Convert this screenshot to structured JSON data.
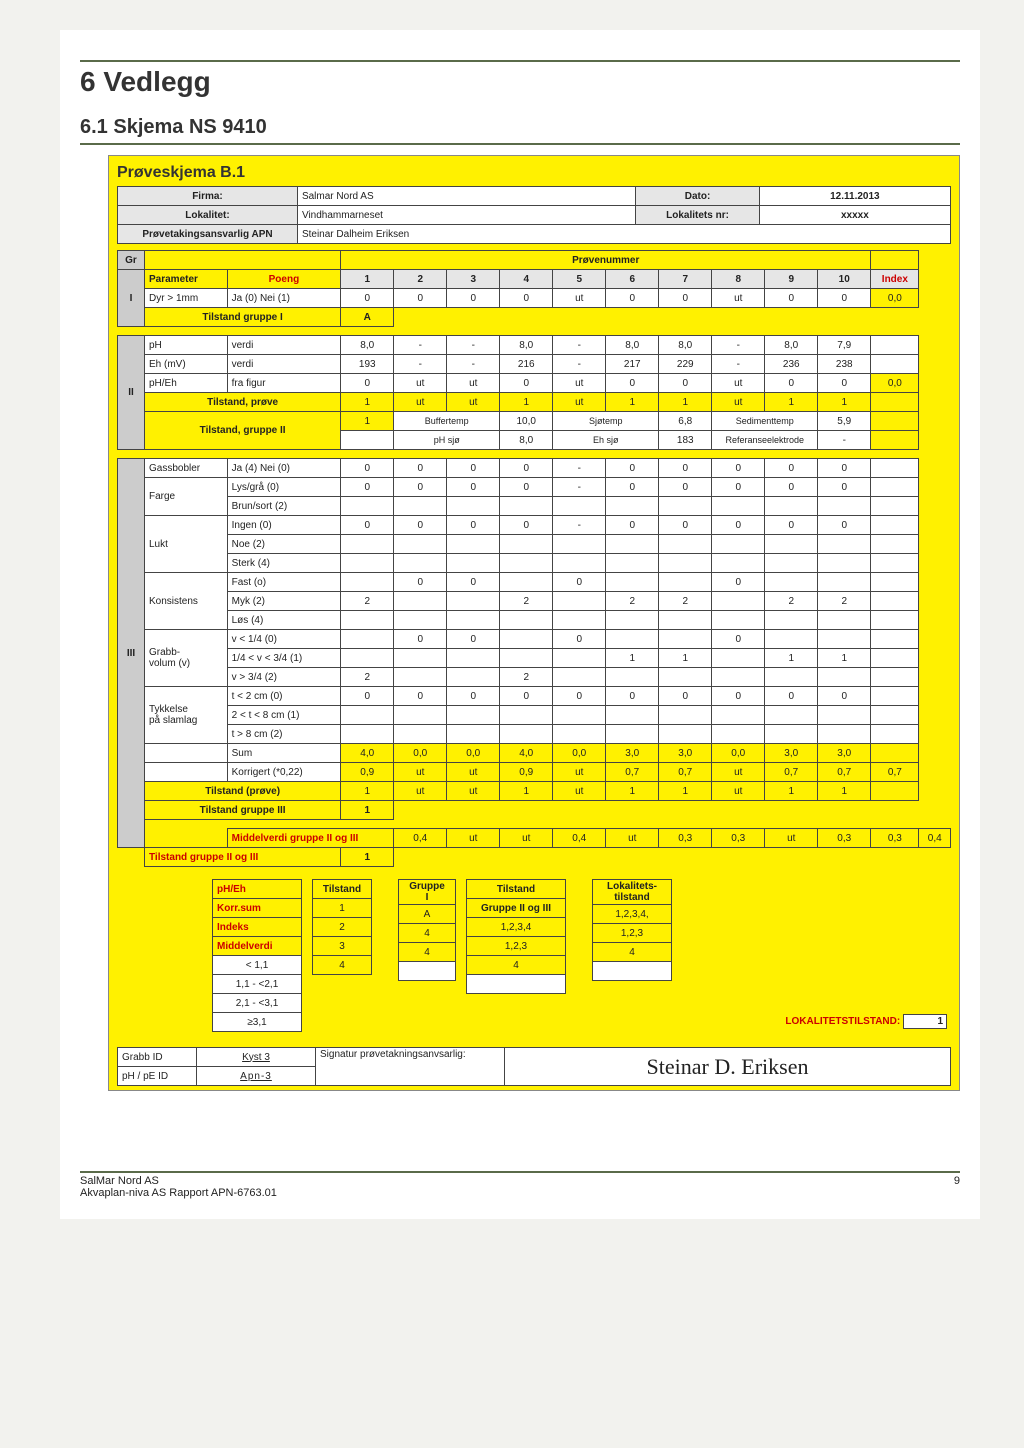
{
  "headings": {
    "h1": "6 Vedlegg",
    "h2": "6.1 Skjema NS 9410"
  },
  "ps_title": "Prøveskjema B.1",
  "hdr": {
    "firmaL": "Firma:",
    "firma": "Salmar Nord AS",
    "datoL": "Dato:",
    "dato": "12.11.2013",
    "lokL": "Lokalitet:",
    "lok": "Vindhammarneset",
    "loknrL": "Lokalitets nr:",
    "loknr": "xxxxx",
    "respL": "Prøvetakingsansvarlig APN",
    "resp": "Steinar Dalheim Eriksen"
  },
  "provenummer": "Prøvenummer",
  "parameter": "Parameter",
  "poeng": "Poeng",
  "cols": [
    "1",
    "2",
    "3",
    "4",
    "5",
    "6",
    "7",
    "8",
    "9",
    "10"
  ],
  "index": "Index",
  "gr": "Gr",
  "groups": [
    "I",
    "II",
    "III"
  ],
  "rows": {
    "dyr": {
      "p": "Dyr > 1mm",
      "s": "Ja (0)  Nei (1)",
      "v": [
        "0",
        "0",
        "0",
        "0",
        "ut",
        "0",
        "0",
        "ut",
        "0",
        "0"
      ],
      "idx": "0,0"
    },
    "tg1": {
      "label": "Tilstand gruppe I",
      "v": "A"
    },
    "ph": {
      "p": "pH",
      "s": "verdi",
      "v": [
        "8,0",
        "-",
        "-",
        "8,0",
        "-",
        "8,0",
        "8,0",
        "-",
        "8,0",
        "7,9"
      ]
    },
    "eh": {
      "p": "Eh (mV)",
      "s": "verdi",
      "v": [
        "193",
        "-",
        "-",
        "216",
        "-",
        "217",
        "229",
        "-",
        "236",
        "238"
      ]
    },
    "pheh": {
      "p": "pH/Eh",
      "s": "fra figur",
      "v": [
        "0",
        "ut",
        "ut",
        "0",
        "ut",
        "0",
        "0",
        "ut",
        "0",
        "0"
      ],
      "idx": "0,0"
    },
    "tsprove": {
      "label": "Tilstand, prøve",
      "v": [
        "1",
        "ut",
        "ut",
        "1",
        "ut",
        "1",
        "1",
        "ut",
        "1",
        "1"
      ]
    },
    "tsg2": {
      "label": "Tilstand, gruppe II",
      "first": "1",
      "buffer": "Buffertemp",
      "bufferv": "10,0",
      "sjotemp": "Sjøtemp",
      "sjotempv": "6,8",
      "sedtemp": "Sedimenttemp",
      "sedtempv": "5,9",
      "phsjo": "pH sjø",
      "phsjov": "8,0",
      "ehsjo": "Eh sjø",
      "ehsjov": "183",
      "ref": "Referanseelektrode",
      "refv": "-"
    },
    "gass": {
      "p": "Gassbobler",
      "s": "Ja (4)  Nei (0)",
      "v": [
        "0",
        "0",
        "0",
        "0",
        "-",
        "0",
        "0",
        "0",
        "0",
        "0"
      ]
    },
    "farge_lys": {
      "s": "Lys/grå (0)",
      "v": [
        "0",
        "0",
        "0",
        "0",
        "-",
        "0",
        "0",
        "0",
        "0",
        "0"
      ]
    },
    "farge_brun": {
      "s": "Brun/sort (2)"
    },
    "lukt_ingen": {
      "s": "Ingen (0)",
      "v": [
        "0",
        "0",
        "0",
        "0",
        "-",
        "0",
        "0",
        "0",
        "0",
        "0"
      ]
    },
    "lukt_noe": {
      "s": "Noe (2)"
    },
    "lukt_sterk": {
      "s": "Sterk (4)"
    },
    "kons_fast": {
      "s": "Fast (o)",
      "v": [
        "",
        "0",
        "0",
        "",
        "0",
        "",
        "",
        "0",
        "",
        ""
      ]
    },
    "kons_myk": {
      "s": "Myk (2)",
      "v": [
        "2",
        "",
        "",
        "2",
        "",
        "2",
        "2",
        "",
        "2",
        "2"
      ]
    },
    "kons_los": {
      "s": "Løs (4)"
    },
    "grabb_a": {
      "s": "v < 1/4 (0)",
      "v": [
        "",
        "0",
        "0",
        "",
        "0",
        "",
        "",
        "0",
        "",
        ""
      ]
    },
    "grabb_b": {
      "s": "1/4 < v < 3/4 (1)",
      "v": [
        "",
        "",
        "",
        "",
        "",
        "1",
        "1",
        "",
        "1",
        "1"
      ]
    },
    "grabb_c": {
      "s": "v > 3/4 (2)",
      "v": [
        "2",
        "",
        "",
        "2",
        "",
        "",
        "",
        "",
        "",
        ""
      ]
    },
    "tyk_a": {
      "s": "t < 2 cm (0)",
      "v": [
        "0",
        "0",
        "0",
        "0",
        "0",
        "0",
        "0",
        "0",
        "0",
        "0"
      ]
    },
    "tyk_b": {
      "s": "2 < t < 8 cm (1)"
    },
    "tyk_c": {
      "s": "t > 8 cm (2)"
    },
    "sum": {
      "s": "Sum",
      "v": [
        "4,0",
        "0,0",
        "0,0",
        "4,0",
        "0,0",
        "3,0",
        "3,0",
        "0,0",
        "3,0",
        "3,0"
      ]
    },
    "korr": {
      "s": "Korrigert (*0,22)",
      "v": [
        "0,9",
        "ut",
        "ut",
        "0,9",
        "ut",
        "0,7",
        "0,7",
        "ut",
        "0,7",
        "0,7"
      ],
      "idx": "0,7"
    },
    "tsprove3": {
      "label": "Tilstand (prøve)",
      "v": [
        "1",
        "ut",
        "ut",
        "1",
        "ut",
        "1",
        "1",
        "ut",
        "1",
        "1"
      ]
    },
    "tg3": {
      "label": "Tilstand gruppe III",
      "v": "1"
    },
    "mid23": {
      "label": "Middelverdi gruppe II og III",
      "v": [
        "0,4",
        "ut",
        "ut",
        "0,4",
        "ut",
        "0,3",
        "0,3",
        "ut",
        "0,3",
        "0,3"
      ],
      "idx": "0,4"
    },
    "tg23": {
      "label": "Tilstand gruppe II og III",
      "v": "1"
    }
  },
  "paramlabels": {
    "farge": "Farge",
    "lukt": "Lukt",
    "kons": "Konsistens",
    "grabb": "Grabb-\nvolum (v)",
    "tyk": "Tykkelse\npå slamlag"
  },
  "legend": {
    "col1L": [
      "pH/Eh",
      "Korr.sum",
      "Indeks",
      "Middelverdi",
      "< 1,1",
      "1,1 - <2,1",
      "2,1 - <3,1",
      "≥3,1"
    ],
    "tilstandH": "Tilstand",
    "tilstandV": [
      "1",
      "2",
      "3",
      "4"
    ],
    "gruppe": "Gruppe\nI",
    "gruppeV": [
      "A",
      "4",
      "4"
    ],
    "tilstand2H": "Tilstand",
    "g23": "Gruppe II og III",
    "g23V": [
      "1,2,3,4",
      "1,2,3",
      "4"
    ],
    "loktilL": "Lokalitets-\ntilstand",
    "loktilV": [
      "1,2,3,4,",
      "1,2,3",
      "4"
    ],
    "finalL": "LOKALITETSTILSTAND:",
    "finalV": "1"
  },
  "sig": {
    "grabbL": "Grabb ID",
    "grabb": "Kyst 3",
    "pheL": "pH / pE ID",
    "phe": "Apn-3",
    "sigL": "Signatur prøvetakningsanvsarlig:",
    "sig": "Steinar D. Eriksen"
  },
  "footer": {
    "l1": "SalMar Nord AS",
    "l2": "Akvaplan-niva AS Rapport APN-6763.01",
    "pg": "9"
  }
}
